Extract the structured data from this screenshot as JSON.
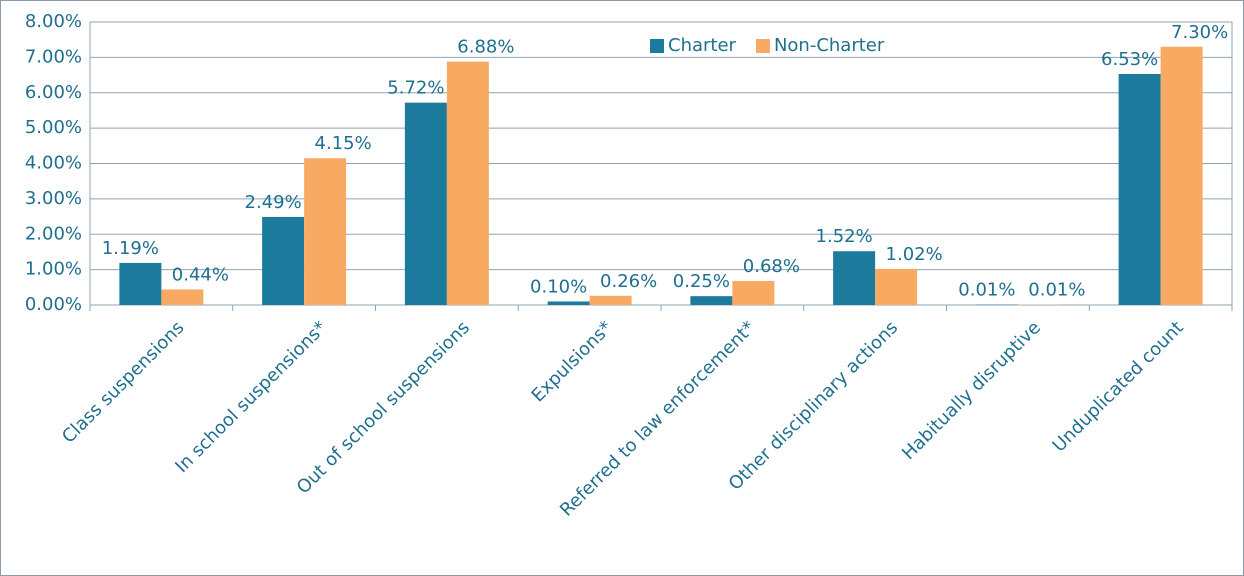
{
  "chart_data": {
    "type": "bar",
    "categories": [
      "Class suspensions",
      "In school suspensions*",
      "Out of school suspensions",
      "Expulsions*",
      "Referred to law enforcement*",
      "Other disciplinary actions",
      "Habitually disruptive",
      "Unduplicated count"
    ],
    "series": [
      {
        "name": "Charter",
        "color": "#1c7a9c",
        "values": [
          1.19,
          2.49,
          5.72,
          0.1,
          0.25,
          1.52,
          0.01,
          6.53
        ],
        "value_labels": [
          "1.19%",
          "2.49%",
          "5.72%",
          "0.10%",
          "0.25%",
          "1.52%",
          "0.01%",
          "6.53%"
        ]
      },
      {
        "name": "Non-Charter",
        "color": "#f9aa62",
        "values": [
          0.44,
          4.15,
          6.88,
          0.26,
          0.68,
          1.02,
          0.01,
          7.3
        ],
        "value_labels": [
          "0.44%",
          "4.15%",
          "6.88%",
          "0.26%",
          "0.68%",
          "1.02%",
          "0.01%",
          "7.30%"
        ]
      }
    ],
    "ylim": [
      0,
      8
    ],
    "yticks": [
      {
        "value": 0,
        "label": "0.00%"
      },
      {
        "value": 1,
        "label": "1.00%"
      },
      {
        "value": 2,
        "label": "2.00%"
      },
      {
        "value": 3,
        "label": "3.00%"
      },
      {
        "value": 4,
        "label": "4.00%"
      },
      {
        "value": 5,
        "label": "5.00%"
      },
      {
        "value": 6,
        "label": "6.00%"
      },
      {
        "value": 7,
        "label": "7.00%"
      },
      {
        "value": 8,
        "label": "8.00%"
      }
    ],
    "grid": true,
    "legend": "top"
  }
}
